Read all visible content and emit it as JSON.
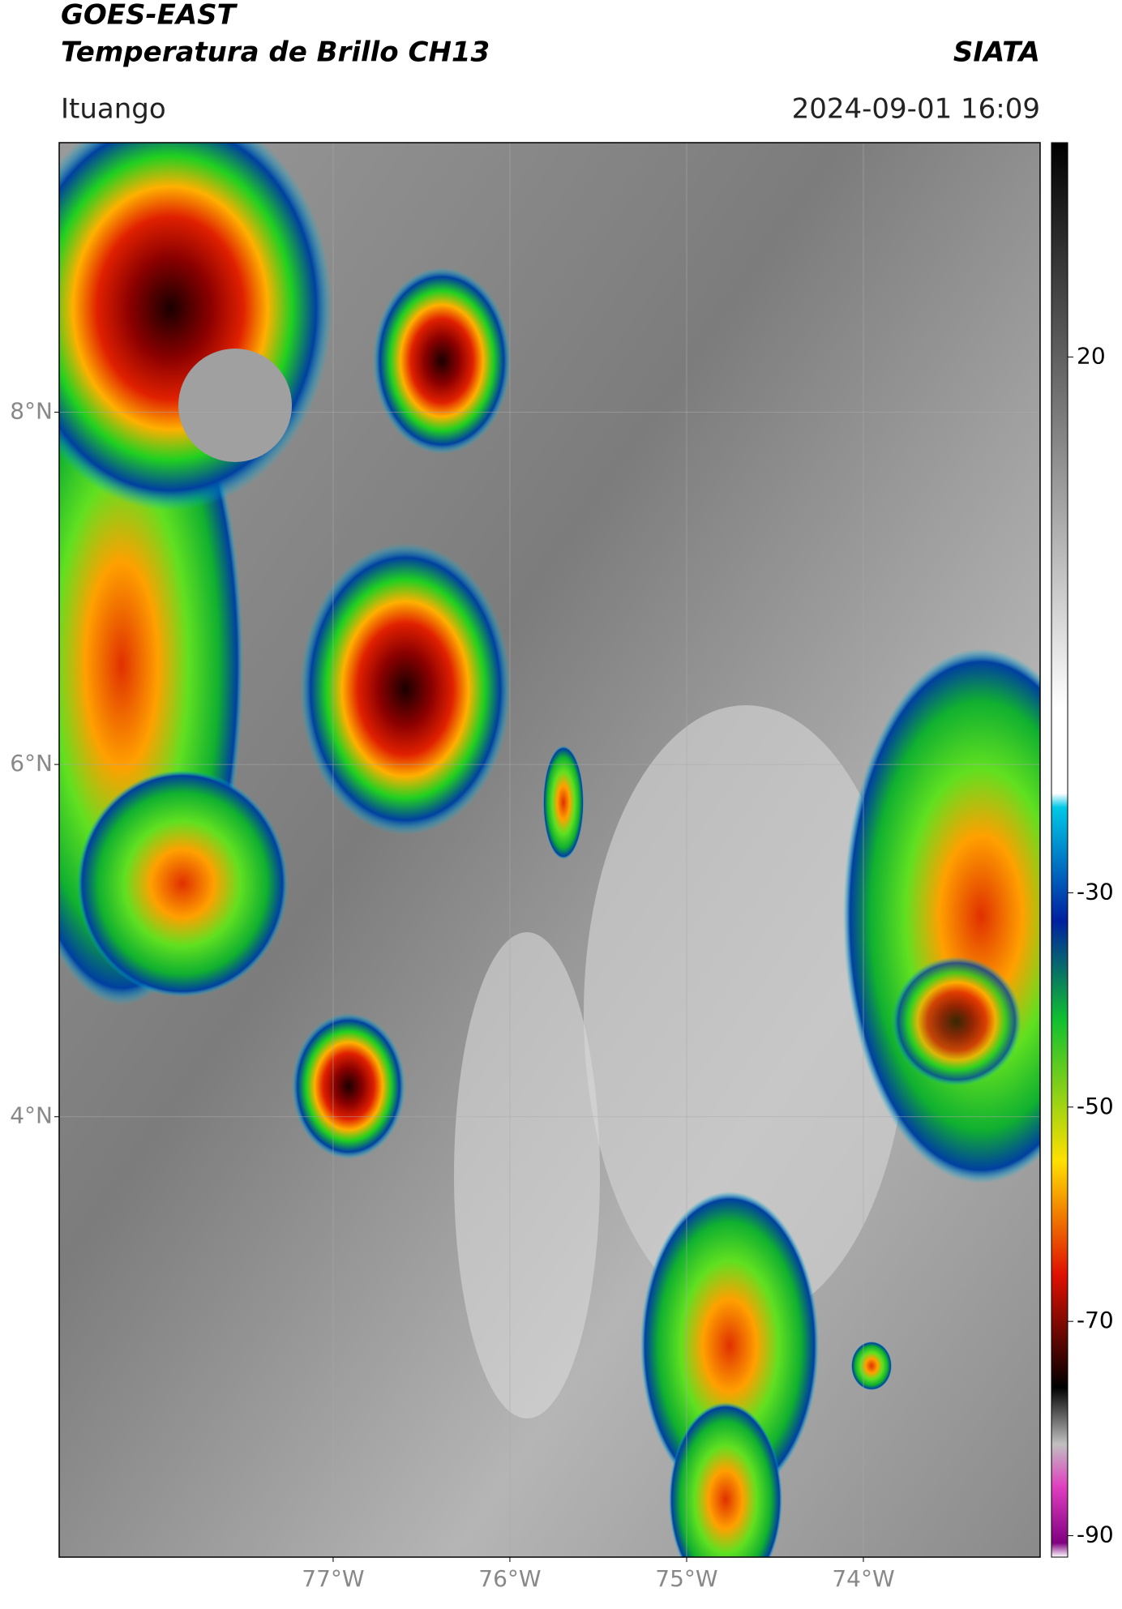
{
  "header": {
    "title": "GOES-EAST",
    "subtitle": "Temperatura de Brillo CH13",
    "source": "SIATA",
    "location": "Ituango",
    "datetime": "2024-09-01 16:09"
  },
  "map": {
    "xlim": [
      -78.55,
      -73
    ],
    "ylim": [
      1.5,
      9.53
    ],
    "lat_ticks": [
      {
        "value": 8,
        "label": "8°N"
      },
      {
        "value": 6,
        "label": "6°N"
      },
      {
        "value": 4,
        "label": "4°N"
      }
    ],
    "lon_ticks": [
      {
        "value": -77,
        "label": "77°W"
      },
      {
        "value": -76,
        "label": "76°W"
      },
      {
        "value": -75,
        "label": "75°W"
      },
      {
        "value": -74,
        "label": "74°W"
      }
    ],
    "grid": true
  },
  "colorbar": {
    "lim": [
      -92,
      40
    ],
    "ticks": [
      20,
      -30,
      -50,
      -70,
      -90
    ]
  }
}
